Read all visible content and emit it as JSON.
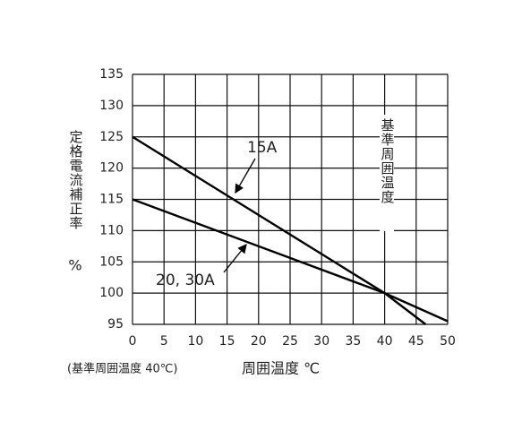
{
  "chart_data": {
    "type": "line",
    "ylabel": "定格電流補正率",
    "ylabel_unit": "%",
    "xlabel": "周囲温度 ℃",
    "note": "(基準周囲温度 40℃)",
    "reference_label": "基準周囲温度",
    "series": [
      {
        "name": "15A",
        "color": "#000000",
        "x": [
          0,
          40,
          46.5
        ],
        "values": [
          125,
          100,
          95
        ]
      },
      {
        "name": "20, 30A",
        "color": "#000000",
        "x": [
          0,
          40,
          50
        ],
        "values": [
          115,
          100,
          95.5
        ]
      }
    ],
    "xlim": [
      0,
      50
    ],
    "xticks": [
      0,
      5,
      10,
      15,
      20,
      25,
      30,
      35,
      40,
      45,
      50
    ],
    "ylim": [
      95,
      135
    ],
    "yticks": [
      95,
      100,
      105,
      110,
      115,
      120,
      125,
      130,
      135
    ],
    "grid": true
  }
}
